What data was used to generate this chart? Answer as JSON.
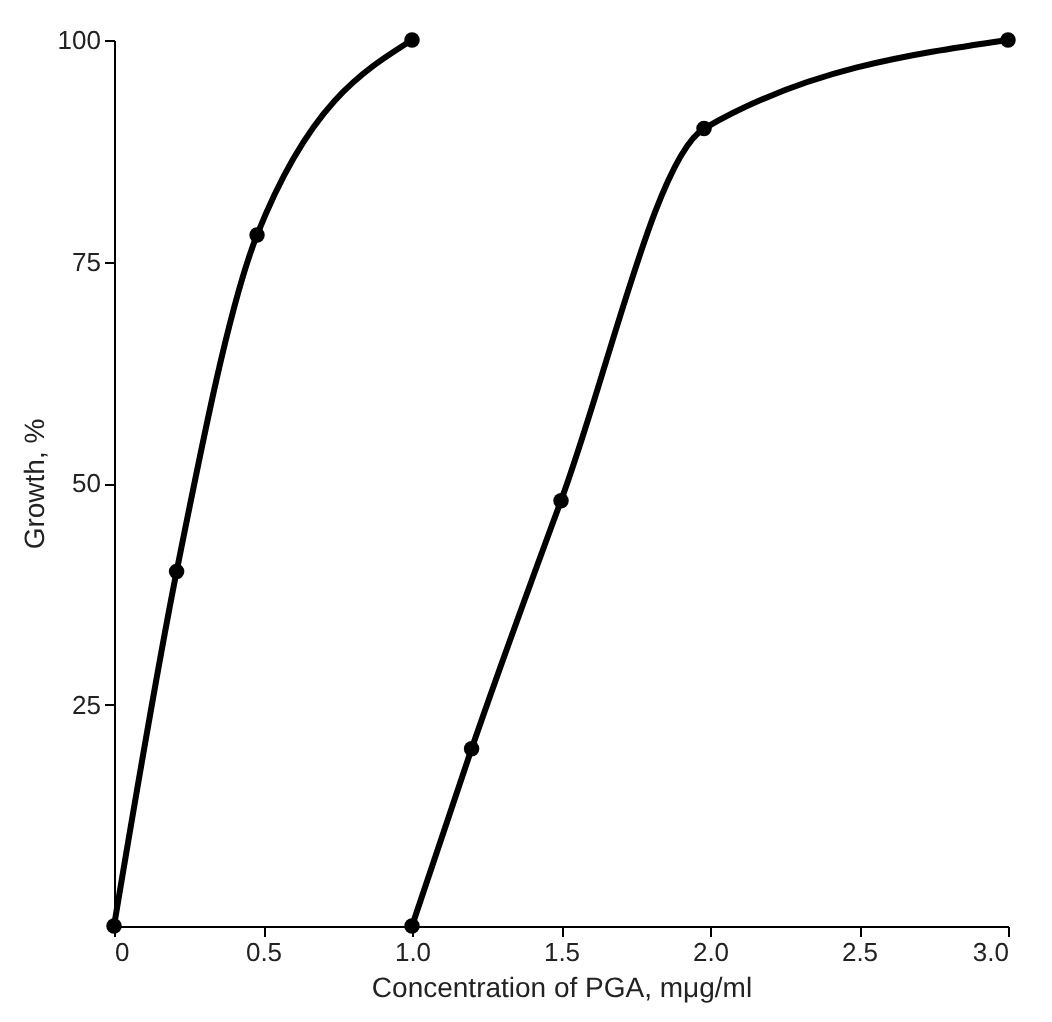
{
  "chart_data": {
    "type": "line",
    "xlabel": "Concentration of PGA,  mμg/ml",
    "ylabel": "Growth, %",
    "xlim": [
      0,
      3
    ],
    "ylim": [
      0,
      100
    ],
    "xticks": [
      0,
      0.5,
      {
        "value": 1,
        "label": "1.0"
      },
      1.5,
      {
        "value": 2,
        "label": "2.0"
      },
      2.5,
      {
        "value": 3,
        "label": "3.0"
      }
    ],
    "yticks": [
      25,
      50,
      75,
      100
    ],
    "marker": "circle",
    "grid": false,
    "legend": false,
    "series": [
      {
        "color": "#000000",
        "x": [
          0,
          0.21,
          0.48,
          1.0
        ],
        "values": [
          0,
          40,
          78,
          100
        ]
      },
      {
        "color": "#000000",
        "x": [
          1.0,
          1.2,
          1.5,
          1.98,
          3.0
        ],
        "values": [
          0,
          20,
          48,
          90,
          100
        ]
      }
    ]
  }
}
